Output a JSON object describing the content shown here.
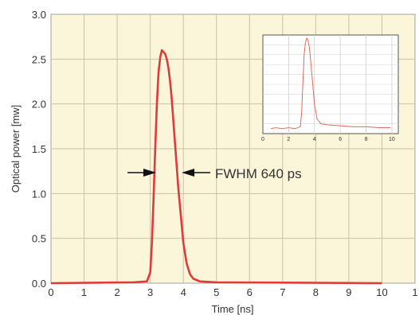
{
  "chart_data": [
    {
      "type": "line",
      "title": "",
      "xlabel": "Time [ns]",
      "ylabel": "Optical power [mw]",
      "xlim": [
        0,
        11
      ],
      "ylim": [
        0,
        3.0
      ],
      "x_ticks": [
        "0",
        "1",
        "2",
        "3",
        "4",
        "5",
        "6",
        "7",
        "8",
        "9",
        "10",
        "1"
      ],
      "y_ticks": [
        "0.0",
        "0.5",
        "1.0",
        "1.5",
        "2.0",
        "2.5",
        "3.0"
      ],
      "grid": true,
      "background": "#fbf6d9",
      "series": [
        {
          "color": "#e03a3a",
          "x": [
            0,
            2.5,
            2.9,
            3.0,
            3.05,
            3.1,
            3.15,
            3.2,
            3.25,
            3.3,
            3.35,
            3.4,
            3.45,
            3.5,
            3.55,
            3.6,
            3.65,
            3.7,
            3.75,
            3.8,
            3.85,
            3.9,
            3.95,
            4.0,
            4.1,
            4.2,
            4.3,
            4.5,
            5.0,
            10
          ],
          "y": [
            0.0,
            0.01,
            0.02,
            0.12,
            0.45,
            0.95,
            1.5,
            2.0,
            2.35,
            2.52,
            2.6,
            2.58,
            2.56,
            2.5,
            2.4,
            2.25,
            2.05,
            1.8,
            1.55,
            1.3,
            1.05,
            0.85,
            0.65,
            0.45,
            0.22,
            0.1,
            0.05,
            0.02,
            0.01,
            0.0
          ]
        }
      ],
      "annotations": [
        {
          "text": "FWHM 640 ps",
          "arrow_left_at": {
            "x": 3.2,
            "y": 1.24
          },
          "arrow_right_at": {
            "x": 3.8,
            "y": 1.24
          }
        }
      ]
    },
    {
      "type": "line",
      "title": "",
      "xlim": [
        0,
        10.5
      ],
      "ylim": [
        0,
        1
      ],
      "x_ticks": [
        "0",
        "2",
        "4",
        "6",
        "8",
        "10"
      ],
      "grid": true,
      "background": "#ffffff",
      "series": [
        {
          "color": "#e06a5a",
          "x": [
            0.6,
            1,
            1.5,
            2,
            2.5,
            2.9,
            3.0,
            3.1,
            3.2,
            3.3,
            3.4,
            3.5,
            3.6,
            3.7,
            3.8,
            3.9,
            4.0,
            4.2,
            4.5,
            5,
            6,
            7,
            8,
            9,
            9.9
          ],
          "y": [
            0.05,
            0.06,
            0.05,
            0.06,
            0.05,
            0.07,
            0.2,
            0.5,
            0.8,
            0.92,
            0.97,
            0.95,
            0.88,
            0.75,
            0.6,
            0.45,
            0.3,
            0.15,
            0.1,
            0.09,
            0.08,
            0.07,
            0.07,
            0.06,
            0.06
          ]
        }
      ]
    }
  ]
}
